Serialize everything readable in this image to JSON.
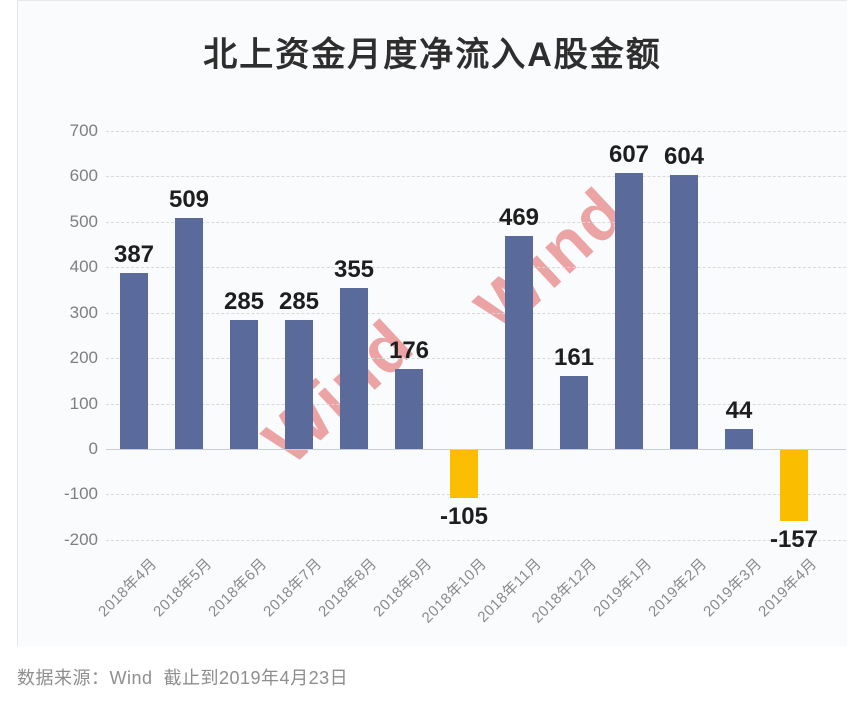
{
  "title": "北上资金月度净流入A股金额",
  "source_note": "数据来源：Wind  截止到2019年4月23日",
  "watermark": {
    "text": "Wind",
    "color": "rgba(222,76,76,0.5)"
  },
  "colors": {
    "positive_bar": "#5a6a9b",
    "negative_bar": "#fbbd00",
    "gridline": "#d9d9d9",
    "zero_axis": "#c9ced4",
    "card_background": "#fafbfd",
    "page_background": "#ffffff",
    "title_text": "#2e2e2e",
    "axis_text": "#7f7f7f",
    "value_text": "#1e1e1e",
    "source_text": "#8e8e8e"
  },
  "chart_data": {
    "type": "bar",
    "title": "北上资金月度净流入A股金额",
    "categories": [
      "2018年4月",
      "2018年5月",
      "2018年6月",
      "2018年7月",
      "2018年8月",
      "2018年9月",
      "2018年10月",
      "2018年11月",
      "2018年12月",
      "2019年1月",
      "2019年2月",
      "2019年3月",
      "2019年4月"
    ],
    "values": [
      387,
      509,
      285,
      285,
      355,
      176,
      -105,
      469,
      161,
      607,
      604,
      44,
      -157
    ],
    "xlabel": "",
    "ylabel": "",
    "ylim": [
      -200,
      700
    ],
    "ytick_interval": 100,
    "yticks": [
      700,
      600,
      500,
      400,
      300,
      200,
      100,
      0,
      -100,
      -200
    ],
    "grid": "horizontal-dashed",
    "legend": "none",
    "bar_color_rule": "positive=slate-blue, negative=gold"
  }
}
